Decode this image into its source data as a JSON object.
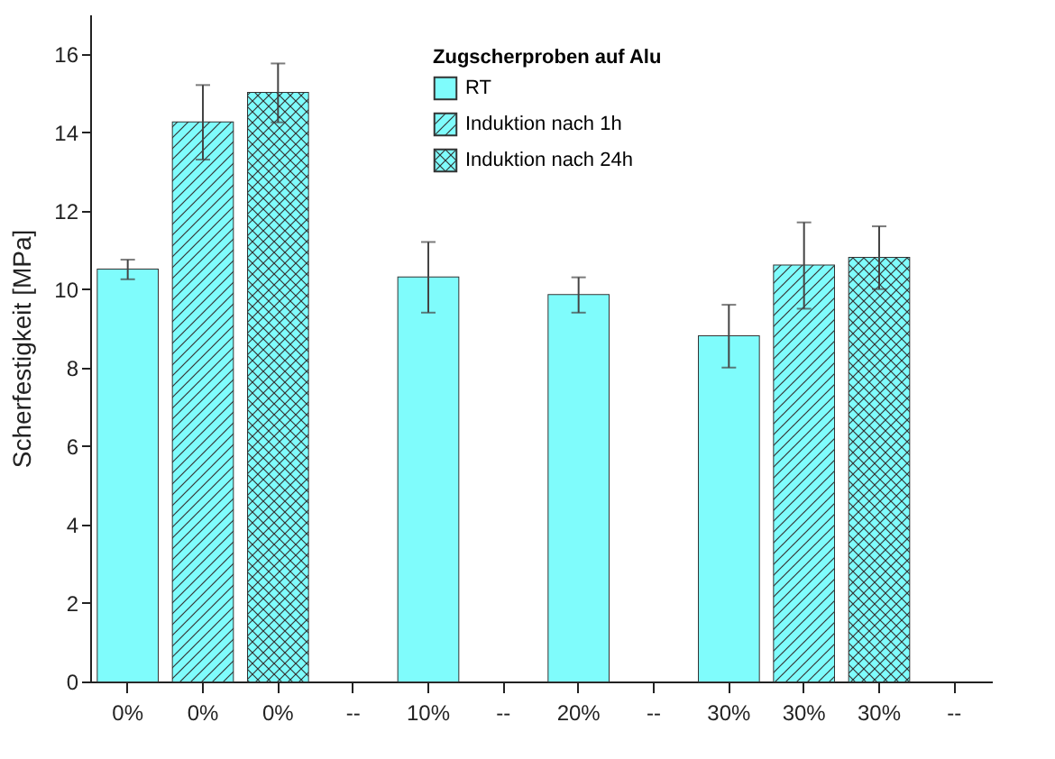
{
  "chart_data": {
    "type": "bar",
    "ylabel": "Scherfestigkeit [MPa]",
    "legend_title": "Zugscherproben auf Alu",
    "categories": [
      "0%",
      "0%",
      "0%",
      "--",
      "10%",
      "--",
      "20%",
      "--",
      "30%",
      "30%",
      "30%",
      "--"
    ],
    "series": [
      {
        "name": "RT",
        "color": "#7ffcfc",
        "values": [
          10.5,
          null,
          null,
          null,
          10.3,
          null,
          9.85,
          null,
          8.8,
          null,
          null,
          null
        ],
        "errors": [
          0.25,
          null,
          null,
          null,
          0.9,
          null,
          0.45,
          null,
          0.8,
          null,
          null,
          null
        ]
      },
      {
        "name": "Induktion nach 1h",
        "color": "#7ffcfc",
        "values": [
          null,
          14.25,
          null,
          null,
          null,
          null,
          null,
          null,
          null,
          10.6,
          null,
          null
        ],
        "errors": [
          null,
          0.95,
          null,
          null,
          null,
          null,
          null,
          null,
          null,
          1.1,
          null,
          null
        ]
      },
      {
        "name": "Induktion nach 24h",
        "color": "#7ffcfc",
        "values": [
          null,
          null,
          15.0,
          null,
          null,
          null,
          null,
          null,
          null,
          null,
          10.8,
          null
        ],
        "errors": [
          null,
          null,
          0.75,
          null,
          null,
          null,
          null,
          null,
          null,
          null,
          0.8,
          null
        ]
      }
    ],
    "ylim": [
      0,
      17
    ],
    "yticks": [
      0,
      2,
      4,
      6,
      8,
      10,
      12,
      14,
      16
    ],
    "grid": false,
    "legend": "top right"
  }
}
